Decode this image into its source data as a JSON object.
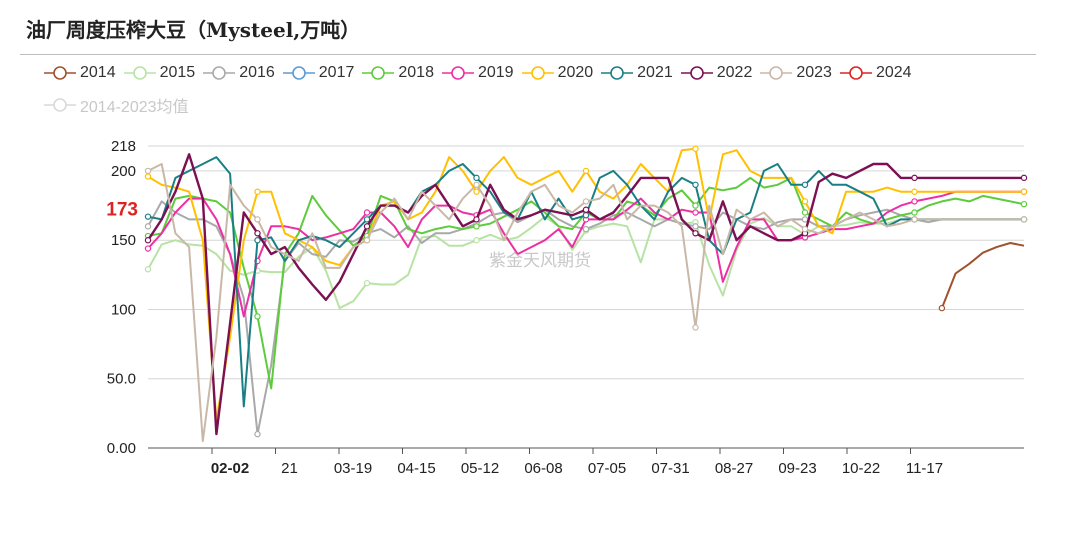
{
  "title": "油厂周度压榨大豆（Mysteel,万吨）",
  "watermark": "紫金天风期货",
  "chart_data": {
    "type": "line",
    "title": "油厂周度压榨大豆（Mysteel,万吨）",
    "ylim": [
      0,
      218
    ],
    "yticks": [
      "0.00",
      "50.0",
      "100",
      "150",
      "200",
      "218"
    ],
    "xticks": [
      "02-02",
      "21",
      "03-19",
      "04-15",
      "05-12",
      "06-08",
      "07-05",
      "07-31",
      "08-27",
      "09-23",
      "10-22",
      "11-17"
    ],
    "highlight": {
      "x_label": "02-02",
      "y_label": "173",
      "color": "#dd2222"
    },
    "legend_position": "top",
    "series": [
      {
        "name": "2014",
        "color": "#a0522d",
        "values": [
          null,
          null,
          null,
          null,
          null,
          null,
          null,
          null,
          null,
          null,
          null,
          null,
          null,
          null,
          null,
          null,
          null,
          null,
          null,
          null,
          null,
          null,
          null,
          null,
          null,
          null,
          null,
          null,
          null,
          null,
          null,
          null,
          null,
          null,
          null,
          null,
          null,
          null,
          null,
          null,
          null,
          null,
          null,
          null,
          null,
          null,
          null,
          null,
          null,
          null,
          null,
          null,
          null,
          null,
          null,
          null,
          null,
          null,
          101,
          126,
          133,
          141,
          145,
          148,
          146
        ]
      },
      {
        "name": "2015",
        "color": "#b7e3a4",
        "values": [
          129,
          147,
          150,
          147,
          146,
          140,
          128,
          125,
          128,
          127,
          127,
          138,
          145,
          128,
          101,
          106,
          119,
          118,
          118,
          125,
          152,
          153,
          146,
          146,
          150,
          154,
          150,
          152,
          159,
          167,
          160,
          143,
          157,
          160,
          162,
          160,
          134,
          165,
          165,
          162,
          163,
          132,
          110,
          143,
          162,
          166,
          160,
          160,
          154,
          160,
          160,
          161,
          163,
          162,
          162,
          165,
          165,
          165,
          165,
          165,
          165,
          165,
          165,
          165,
          165
        ]
      },
      {
        "name": "2016",
        "color": "#a9a9a9",
        "values": [
          160,
          178,
          170,
          165,
          165,
          160,
          140,
          108,
          10,
          60,
          135,
          148,
          140,
          138,
          150,
          149,
          155,
          158,
          152,
          160,
          148,
          155,
          155,
          158,
          162,
          168,
          170,
          163,
          168,
          172,
          165,
          160,
          158,
          162,
          168,
          170,
          165,
          160,
          165,
          162,
          160,
          158,
          170,
          165,
          160,
          158,
          163,
          165,
          165,
          160,
          160,
          165,
          168,
          170,
          172,
          168,
          165,
          163,
          165,
          165,
          165,
          165,
          165,
          165,
          165
        ]
      },
      {
        "name": "2017",
        "color": "#5b9bd5",
        "values": [
          null,
          null,
          null,
          null,
          null,
          null,
          null,
          null,
          null,
          null,
          null,
          null,
          null,
          null,
          null,
          null,
          null,
          null,
          null,
          null,
          null,
          null,
          null,
          null,
          null,
          null,
          null,
          null,
          null,
          null,
          null,
          null,
          null,
          null,
          null,
          null,
          null,
          null,
          null,
          null,
          null,
          null,
          null,
          null,
          null,
          null,
          null,
          null,
          null,
          null,
          null,
          null,
          null,
          null,
          null,
          null,
          null,
          null,
          null,
          null,
          null,
          null,
          null,
          null,
          null
        ]
      },
      {
        "name": "2018",
        "color": "#5ccc3c",
        "values": [
          153,
          155,
          180,
          182,
          180,
          178,
          170,
          130,
          95,
          43,
          140,
          155,
          182,
          168,
          157,
          146,
          153,
          182,
          178,
          158,
          155,
          158,
          160,
          158,
          160,
          162,
          167,
          172,
          178,
          170,
          160,
          158,
          170,
          165,
          165,
          178,
          175,
          168,
          180,
          186,
          175,
          188,
          186,
          188,
          195,
          188,
          190,
          195,
          170,
          165,
          160,
          170,
          165,
          162,
          165,
          168,
          170,
          175,
          178,
          180,
          178,
          182,
          180,
          178,
          176
        ]
      },
      {
        "name": "2019",
        "color": "#ee2ea4",
        "values": [
          144,
          155,
          170,
          180,
          180,
          165,
          140,
          95,
          135,
          160,
          160,
          158,
          150,
          152,
          155,
          158,
          170,
          170,
          160,
          145,
          165,
          175,
          175,
          170,
          168,
          172,
          155,
          140,
          145,
          150,
          158,
          145,
          165,
          165,
          165,
          172,
          180,
          170,
          165,
          172,
          170,
          170,
          120,
          145,
          165,
          165,
          150,
          150,
          152,
          155,
          158,
          158,
          160,
          162,
          170,
          175,
          178,
          180,
          182,
          185,
          185,
          185,
          185,
          185,
          185
        ]
      },
      {
        "name": "2020",
        "color": "#ffc000",
        "values": [
          196,
          190,
          188,
          185,
          150,
          20,
          80,
          150,
          185,
          185,
          155,
          150,
          145,
          135,
          132,
          145,
          150,
          175,
          178,
          165,
          170,
          185,
          210,
          200,
          185,
          200,
          210,
          195,
          190,
          195,
          200,
          185,
          200,
          185,
          180,
          190,
          205,
          195,
          185,
          215,
          216,
          165,
          212,
          215,
          200,
          195,
          195,
          195,
          178,
          160,
          155,
          185,
          185,
          185,
          188,
          185,
          185,
          185,
          185,
          185,
          185,
          185,
          185,
          185,
          185
        ]
      },
      {
        "name": "2021",
        "color": "#1a7f84",
        "values": [
          167,
          165,
          195,
          200,
          205,
          210,
          198,
          30,
          150,
          152,
          135,
          150,
          153,
          150,
          145,
          155,
          165,
          175,
          175,
          170,
          185,
          190,
          200,
          205,
          195,
          185,
          170,
          165,
          185,
          165,
          180,
          165,
          168,
          195,
          200,
          190,
          175,
          165,
          185,
          195,
          190,
          150,
          140,
          165,
          170,
          200,
          205,
          190,
          190,
          200,
          190,
          190,
          185,
          180,
          160,
          165,
          165,
          165,
          165,
          165,
          165,
          165,
          165,
          165,
          165
        ]
      },
      {
        "name": "2022",
        "color": "#7b1052",
        "values": [
          150,
          165,
          185,
          212,
          180,
          10,
          90,
          170,
          155,
          140,
          145,
          130,
          118,
          107,
          120,
          140,
          160,
          175,
          175,
          170,
          182,
          190,
          175,
          160,
          165,
          190,
          172,
          165,
          168,
          172,
          170,
          168,
          172,
          165,
          170,
          182,
          195,
          195,
          195,
          165,
          155,
          150,
          178,
          150,
          160,
          155,
          150,
          150,
          155,
          192,
          198,
          195,
          200,
          205,
          205,
          195,
          195,
          195,
          195,
          195,
          195,
          195,
          195,
          195,
          195
        ]
      },
      {
        "name": "2023",
        "color": "#c9b8a8",
        "values": [
          200,
          205,
          155,
          145,
          5,
          80,
          190,
          175,
          165,
          145,
          140,
          135,
          155,
          130,
          130,
          145,
          150,
          170,
          180,
          165,
          185,
          175,
          165,
          180,
          190,
          175,
          150,
          170,
          185,
          190,
          175,
          170,
          178,
          180,
          190,
          165,
          175,
          175,
          170,
          160,
          87,
          175,
          140,
          172,
          165,
          170,
          160,
          165,
          158,
          155,
          160,
          165,
          170,
          165,
          160,
          162,
          165,
          165,
          165,
          165,
          165,
          165,
          165,
          165,
          165
        ]
      },
      {
        "name": "2024",
        "color": "#dd2222",
        "values": [
          null,
          null,
          null,
          null,
          null,
          null,
          null,
          null,
          null,
          null,
          null,
          null,
          null,
          null,
          null,
          null,
          null,
          null,
          null,
          null,
          null,
          null,
          null,
          null,
          null,
          null,
          null,
          null,
          null,
          null,
          null,
          null,
          null,
          null,
          null,
          null,
          null,
          null,
          null,
          null,
          null,
          null,
          null,
          null,
          null,
          null,
          null,
          null,
          null,
          null,
          null,
          null,
          null,
          null,
          null,
          null,
          null,
          null,
          null,
          null,
          null,
          null,
          null,
          null,
          null
        ]
      },
      {
        "name": "2014-2023均值",
        "color": "#d9d9d9",
        "values": [
          null,
          null,
          null,
          null,
          null,
          null,
          null,
          null,
          null,
          null,
          null,
          null,
          null,
          null,
          null,
          null,
          null,
          null,
          null,
          null,
          null,
          null,
          null,
          null,
          null,
          null,
          null,
          null,
          null,
          null,
          null,
          null,
          null,
          null,
          null,
          null,
          null,
          null,
          null,
          null,
          null,
          null,
          null,
          null,
          null,
          null,
          null,
          null,
          null,
          null,
          null,
          null,
          null,
          null,
          null,
          null,
          null,
          null,
          null,
          null,
          null,
          null,
          null,
          null,
          null
        ]
      }
    ]
  }
}
